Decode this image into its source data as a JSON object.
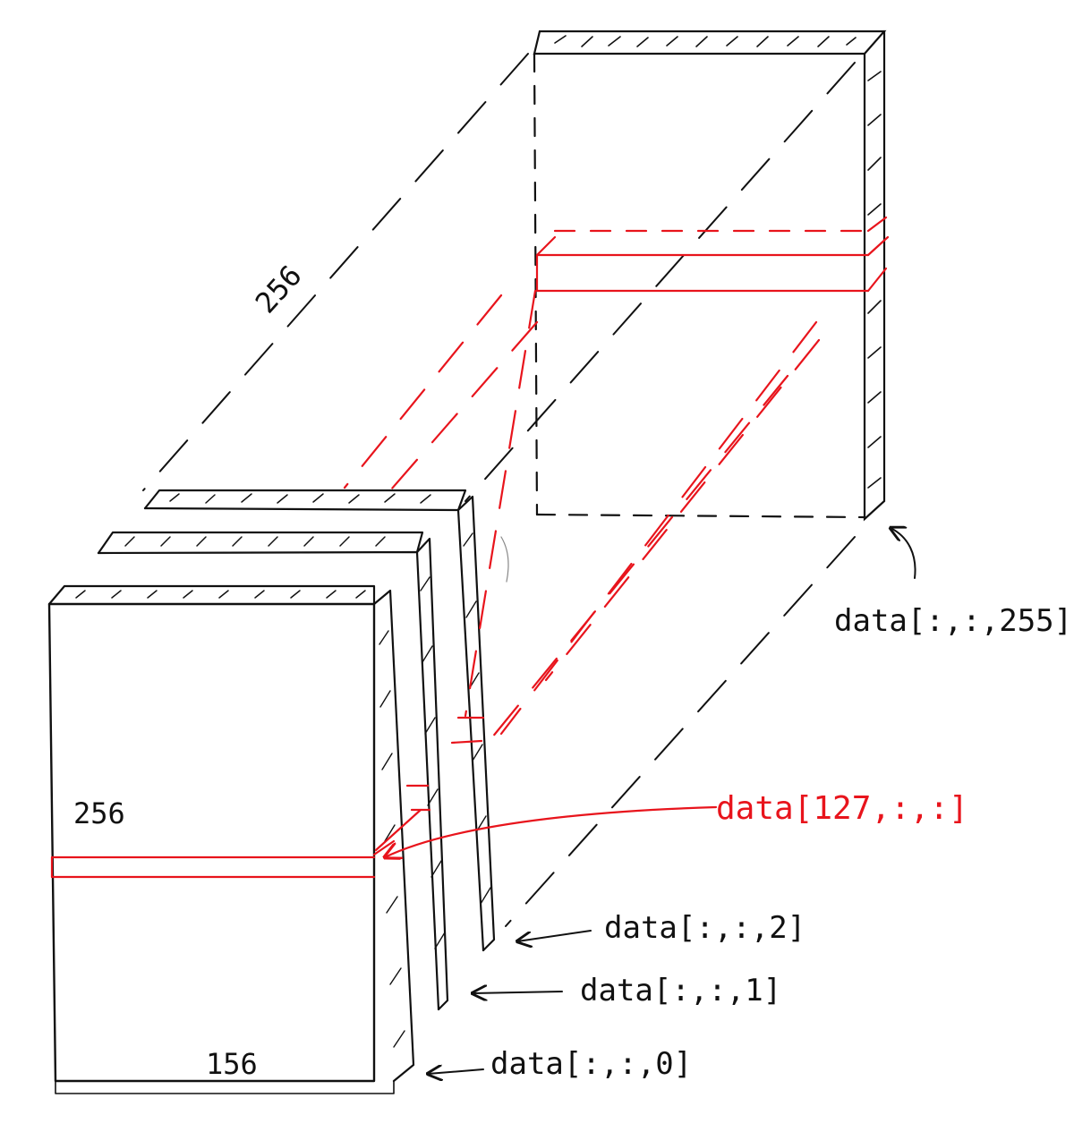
{
  "colors": {
    "ink": "#111111",
    "highlight": "#e8141c",
    "paper": "#ffffff"
  },
  "dimensions": {
    "depth": "256",
    "height": "256",
    "width": "156"
  },
  "labels": {
    "slice_255": "data[:,:,255]",
    "slice_127": "data[127,:,:]",
    "slice_2": "data[:,:,2]",
    "slice_1": "data[:,:,1]",
    "slice_0": "data[:,:,0]"
  }
}
